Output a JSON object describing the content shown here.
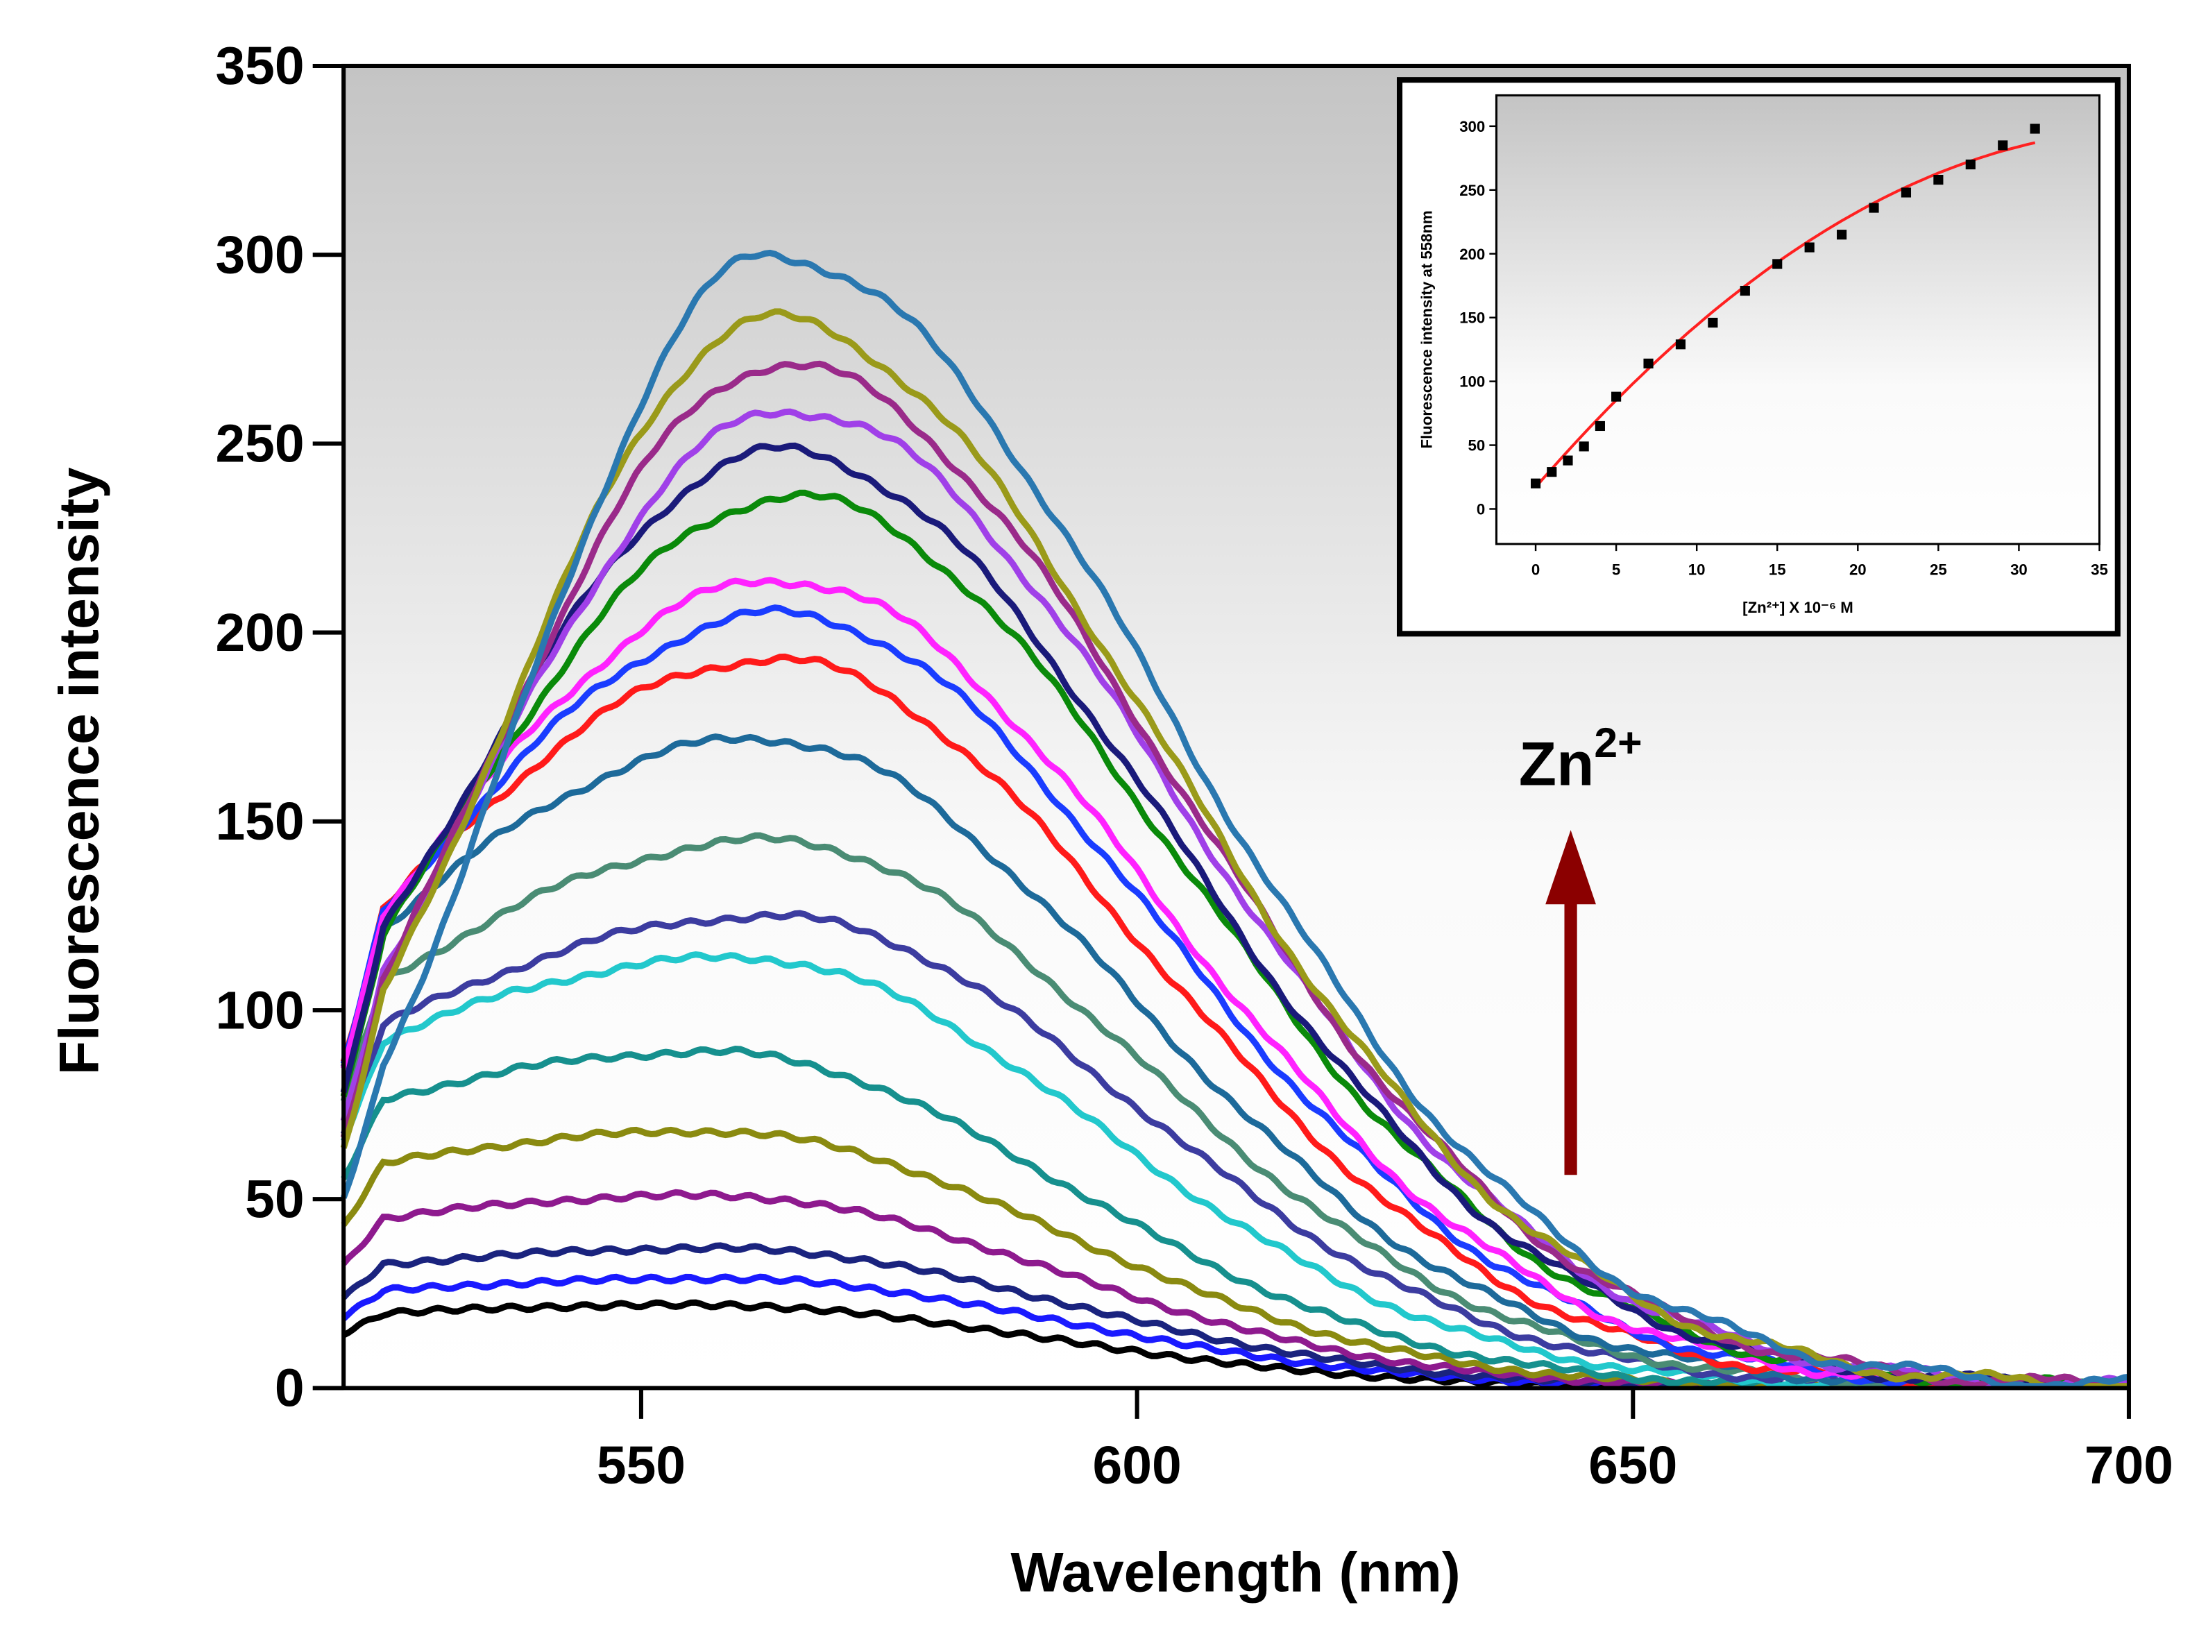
{
  "chart_data": [
    {
      "type": "line",
      "title": "",
      "xlabel": "Wavelength (nm)",
      "ylabel": "Fluorescence intensity",
      "xlim": [
        520,
        700
      ],
      "ylim": [
        0,
        350
      ],
      "xticks": [
        550,
        600,
        650,
        700
      ],
      "yticks": [
        0,
        50,
        100,
        150,
        200,
        250,
        300,
        350
      ],
      "grid": false,
      "annotation": {
        "text": "Zn",
        "superscript": "2+",
        "arrow": "up",
        "arrow_color": "#8b0000"
      },
      "series": [
        {
          "name": "spectrum 1",
          "peak": 22,
          "peak_wavelength": 556,
          "color": "#000000"
        },
        {
          "name": "spectrum 2",
          "peak": 29,
          "peak_wavelength": 558,
          "color": "#1a1aff"
        },
        {
          "name": "spectrum 3",
          "peak": 37,
          "peak_wavelength": 558,
          "color": "#1a237e"
        },
        {
          "name": "spectrum 4",
          "peak": 51,
          "peak_wavelength": 557,
          "color": "#8e1a8e"
        },
        {
          "name": "spectrum 5",
          "peak": 68,
          "peak_wavelength": 557,
          "color": "#8a8a10"
        },
        {
          "name": "spectrum 6",
          "peak": 89,
          "peak_wavelength": 557,
          "color": "#16908e"
        },
        {
          "name": "spectrum 7",
          "peak": 114,
          "peak_wavelength": 560,
          "color": "#22c8cc"
        },
        {
          "name": "spectrum 8",
          "peak": 125,
          "peak_wavelength": 563,
          "color": "#3c3ca0"
        },
        {
          "name": "spectrum 9",
          "peak": 145,
          "peak_wavelength": 563,
          "color": "#4a8c74"
        },
        {
          "name": "spectrum 10",
          "peak": 172,
          "peak_wavelength": 562,
          "color": "#1d6a9a"
        },
        {
          "name": "spectrum 11",
          "peak": 193,
          "peak_wavelength": 563,
          "color": "#ff1a1a"
        },
        {
          "name": "spectrum 12",
          "peak": 205,
          "peak_wavelength": 564,
          "color": "#1a3cff"
        },
        {
          "name": "spectrum 13",
          "peak": 214,
          "peak_wavelength": 564,
          "color": "#ff22ff"
        },
        {
          "name": "spectrum 14",
          "peak": 236,
          "peak_wavelength": 565,
          "color": "#0a8a0a"
        },
        {
          "name": "spectrum 15",
          "peak": 248,
          "peak_wavelength": 564,
          "color": "#1a1a7a"
        },
        {
          "name": "spectrum 16",
          "peak": 259,
          "peak_wavelength": 565,
          "color": "#a040e8"
        },
        {
          "name": "spectrum 17",
          "peak": 271,
          "peak_wavelength": 564,
          "color": "#9a2a8a"
        },
        {
          "name": "spectrum 18",
          "peak": 283,
          "peak_wavelength": 563,
          "color": "#9a9a1a"
        },
        {
          "name": "spectrum 19",
          "peak": 300,
          "peak_wavelength": 563,
          "color": "#2a78b0"
        }
      ]
    },
    {
      "type": "scatter",
      "title": "",
      "xlabel": "[Zn²⁺] X 10⁻⁶ M",
      "ylabel": "Fluorescence intensity at 558nm",
      "xlim": [
        -2.5,
        35
      ],
      "ylim": [
        -25,
        325
      ],
      "xticks": [
        0,
        5,
        10,
        15,
        20,
        25,
        30,
        35
      ],
      "yticks": [
        0,
        50,
        100,
        150,
        200,
        250,
        300
      ],
      "x": [
        0,
        1,
        2,
        3,
        4,
        5,
        7,
        9,
        11,
        13,
        15,
        17,
        19,
        21,
        23,
        25,
        27,
        29,
        31
      ],
      "y": [
        20,
        29,
        38,
        49,
        65,
        88,
        114,
        129,
        146,
        171,
        192,
        205,
        215,
        236,
        248,
        258,
        270,
        285,
        298
      ],
      "fit": {
        "type": "curve",
        "color": "#ff2020",
        "points": [
          [
            0,
            17
          ],
          [
            5,
            83
          ],
          [
            10,
            140
          ],
          [
            15,
            188
          ],
          [
            20,
            228
          ],
          [
            25,
            261
          ],
          [
            31,
            292
          ]
        ]
      },
      "marker_color": "#000000"
    }
  ]
}
